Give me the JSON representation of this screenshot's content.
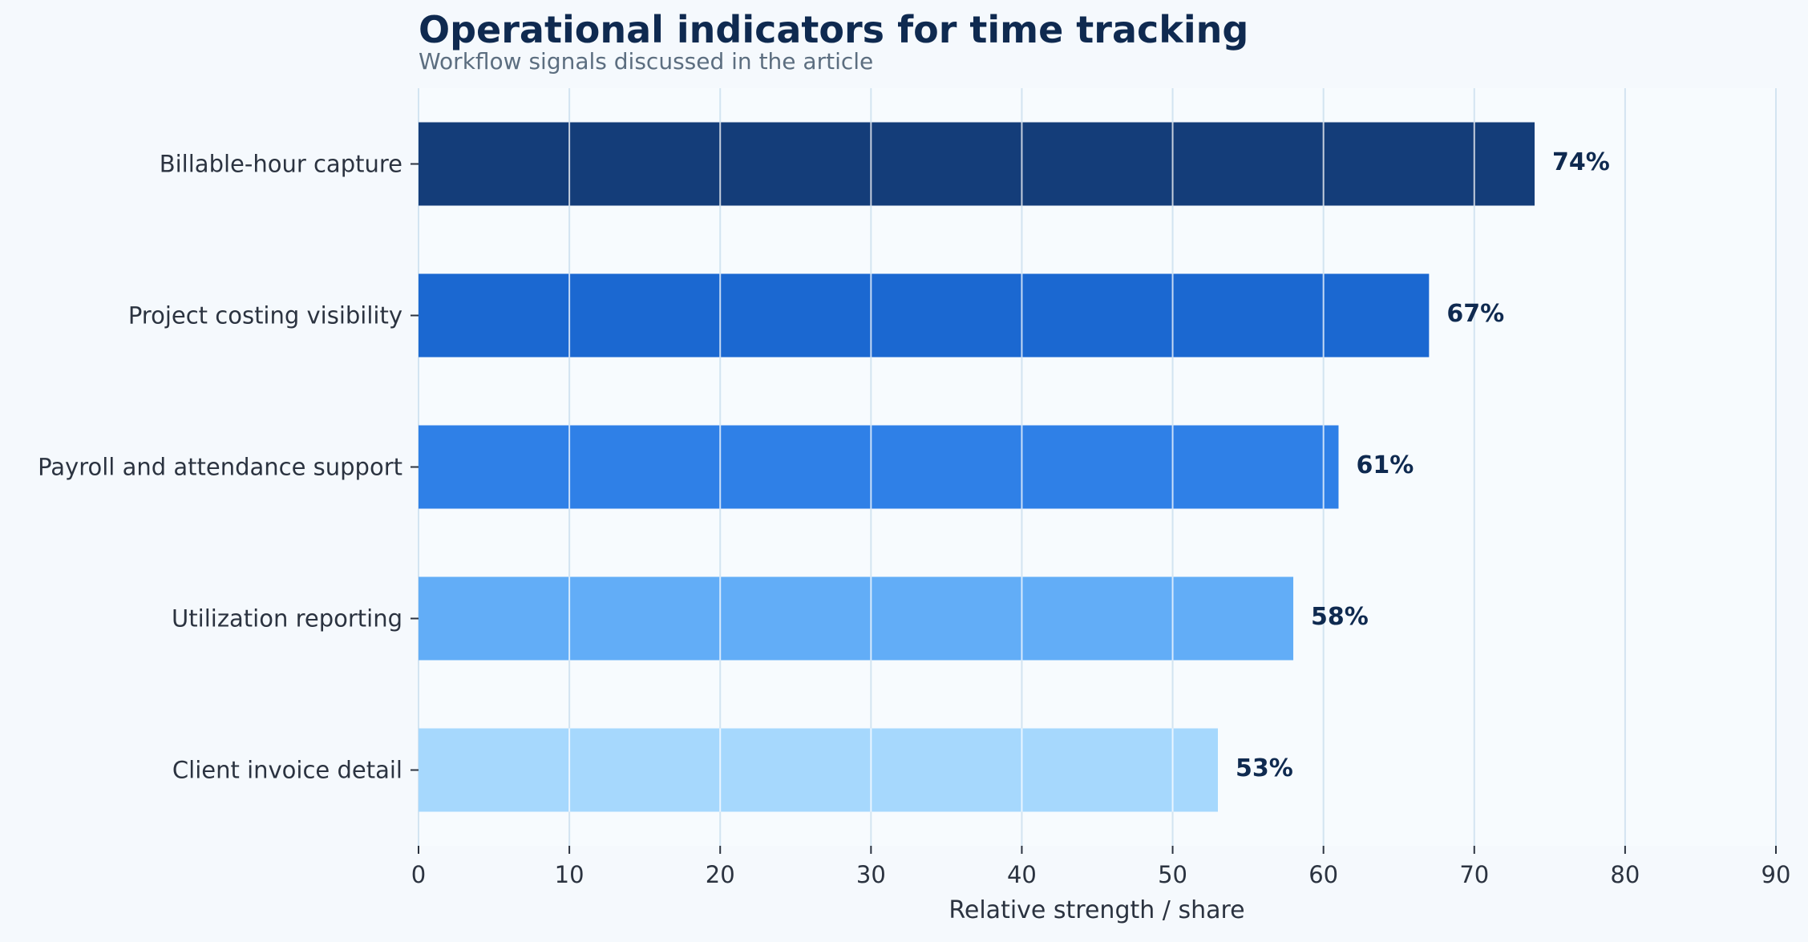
{
  "chart_data": {
    "type": "bar",
    "orientation": "horizontal",
    "title": "Operational indicators for time tracking",
    "subtitle": "Workflow signals discussed in the article",
    "xlabel": "Relative strength / share",
    "ylabel": "",
    "xlim": [
      0,
      90
    ],
    "xticks": [
      0,
      10,
      20,
      30,
      40,
      50,
      60,
      70,
      80,
      90
    ],
    "grid": true,
    "categories": [
      "Billable-hour capture",
      "Project costing visibility",
      "Payroll and attendance support",
      "Utilization reporting",
      "Client invoice detail"
    ],
    "values": [
      74,
      67,
      61,
      58,
      53
    ],
    "labels": [
      "74%",
      "67%",
      "61%",
      "58%",
      "53%"
    ],
    "colors": [
      "#143d79",
      "#1b68d1",
      "#2f80e7",
      "#62adf7",
      "#a6d8fd"
    ]
  },
  "colors": {
    "background": "#f5f9fd",
    "plot_background": "#f7fbfe",
    "title": "#0f2a50",
    "subtitle": "#5c6e80",
    "axis_text": "#2b3340",
    "label_text": "#0f2a50",
    "grid_inside": "#dce8f2",
    "grid_outside": "#d3e4f1"
  }
}
